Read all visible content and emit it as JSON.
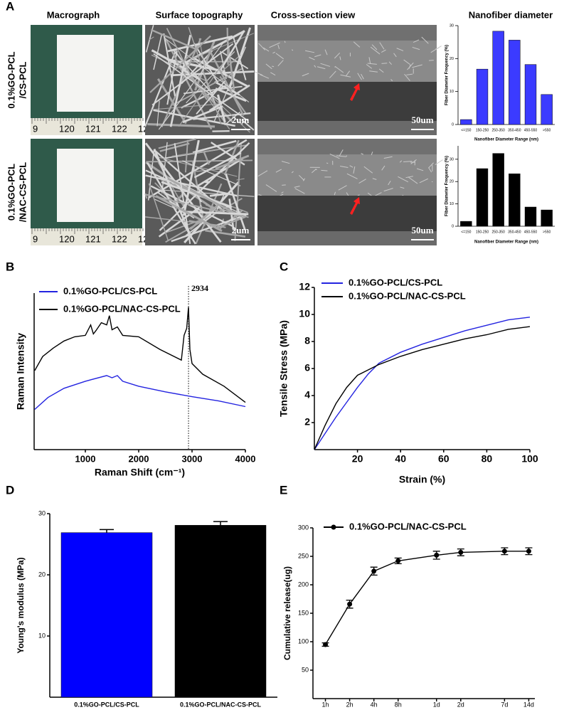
{
  "figure": {
    "panels": [
      "A",
      "B",
      "C",
      "D",
      "E"
    ],
    "columns": [
      "Macrograph",
      "Surface topography",
      "Cross-section view",
      "Nanofiber diameter"
    ],
    "rows": [
      [
        "0.1%GO-PCL",
        "/CS-PCL"
      ],
      [
        "0.1%GO-PCL",
        "/NAC-CS-PCL"
      ]
    ],
    "ruler_labels": [
      "9",
      "120",
      "121",
      "122",
      "12"
    ],
    "scale_bars": [
      "2um",
      "50um"
    ]
  },
  "chart_data": [
    {
      "type": "bar",
      "categories": [
        "<=150",
        "150-250",
        "250-350",
        "350-450",
        "450-550",
        ">550"
      ],
      "values": [
        1.5,
        16.8,
        28.3,
        25.6,
        18.2,
        9.1
      ],
      "color": "#3b3bff",
      "ylim": [
        0,
        30
      ],
      "yticks": [
        0,
        10,
        20,
        30
      ],
      "xlabel": "Nanofiber Diameter Range (nm)",
      "ylabel": "Fiber Diameter Frequency (%)"
    },
    {
      "type": "bar",
      "categories": [
        "<=150",
        "150-250",
        "250-350",
        "350-450",
        "450-550",
        ">550"
      ],
      "values": [
        2.2,
        25.8,
        32.6,
        23.5,
        8.6,
        7.3
      ],
      "color": "#000000",
      "ylim": [
        0,
        36
      ],
      "yticks": [
        0,
        10,
        20,
        30
      ],
      "xlabel": "Nanofiber Diameter Range (nm)",
      "ylabel": "Fiber Diameter Frequency (%)"
    },
    {
      "type": "line",
      "xlabel": "Raman Shift (cm⁻¹)",
      "ylabel": "Raman Intensity",
      "xlim": [
        40,
        4000
      ],
      "xticks": [
        1000,
        2000,
        3000,
        4000
      ],
      "ylim": [
        0,
        100
      ],
      "annotation_x": 2934,
      "series": [
        {
          "name": "0.1%GO-PCL/CS-PCL",
          "color": "#2323e0",
          "x": [
            50,
            300,
            600,
            1000,
            1400,
            1500,
            1600,
            1700,
            2000,
            2500,
            3000,
            3500,
            4000
          ],
          "values": [
            25.7,
            33.3,
            39.2,
            43.7,
            47.3,
            45.9,
            47.3,
            43.7,
            40.5,
            36.9,
            33.8,
            31.1,
            27.5
          ]
        },
        {
          "name": "0.1%GO-PCL/NAC-CS-PCL",
          "color": "#000000",
          "x": [
            50,
            200,
            400,
            600,
            800,
            1000,
            1100,
            1150,
            1200,
            1300,
            1400,
            1450,
            1500,
            1600,
            1700,
            2000,
            2400,
            2800,
            2850,
            2900,
            2934,
            2960,
            3000,
            3200,
            3600,
            4000
          ],
          "values": [
            50.5,
            59.5,
            64.9,
            69.4,
            72.1,
            73,
            79.7,
            73.9,
            76.1,
            81.1,
            79.7,
            85.6,
            76.6,
            78.4,
            73,
            72.1,
            64,
            57.2,
            73,
            77.5,
            91,
            64,
            55,
            48.2,
            40.5,
            30.2
          ]
        }
      ]
    },
    {
      "type": "line",
      "xlabel": "Strain (%)",
      "ylabel": "Tensile Stress (MPa)",
      "xlim": [
        0,
        100
      ],
      "xticks": [
        20,
        40,
        60,
        80,
        100
      ],
      "ylim": [
        0,
        12
      ],
      "yticks": [
        2,
        4,
        6,
        8,
        10,
        12
      ],
      "series": [
        {
          "name": "0.1%GO-PCL/CS-PCL",
          "color": "#2323e0",
          "x": [
            0,
            5,
            10,
            15,
            20,
            25,
            30,
            40,
            50,
            60,
            70,
            80,
            90,
            100
          ],
          "values": [
            0,
            1.2,
            2.4,
            3.5,
            4.6,
            5.6,
            6.4,
            7.2,
            7.8,
            8.3,
            8.8,
            9.2,
            9.6,
            9.8
          ]
        },
        {
          "name": "0.1%GO-PCL/NAC-CS-PCL",
          "color": "#000000",
          "x": [
            0,
            5,
            10,
            15,
            20,
            25,
            30,
            40,
            50,
            60,
            70,
            80,
            90,
            100
          ],
          "values": [
            0,
            1.8,
            3.4,
            4.6,
            5.5,
            5.9,
            6.3,
            6.9,
            7.4,
            7.8,
            8.2,
            8.5,
            8.9,
            9.1
          ]
        }
      ]
    },
    {
      "type": "bar",
      "categories": [
        "0.1%GO-PCL/CS-PCL",
        "0.1%GO-PCL/NAC-CS-PCL"
      ],
      "values": [
        26.9,
        28.1
      ],
      "errors": [
        0.5,
        0.6
      ],
      "colors": [
        "#0000ff",
        "#000000"
      ],
      "ylim": [
        0,
        30
      ],
      "yticks": [
        10,
        20,
        30
      ],
      "ylabel": "Young's modulus (MPa)"
    },
    {
      "type": "line",
      "xscale": "log",
      "ylabel": "Cumulative release(ug)",
      "xlim": [
        0.7,
        400
      ],
      "xticks": [
        {
          "value": 1,
          "label": "1h"
        },
        {
          "value": 2,
          "label": "2h"
        },
        {
          "value": 4,
          "label": "4h"
        },
        {
          "value": 8,
          "label": "8h"
        },
        {
          "value": 24,
          "label": "1d"
        },
        {
          "value": 48,
          "label": "2d"
        },
        {
          "value": 168,
          "label": "7d"
        },
        {
          "value": 336,
          "label": "14d"
        }
      ],
      "ylim": [
        0,
        300
      ],
      "yticks": [
        50,
        100,
        150,
        200,
        250,
        300
      ],
      "series": [
        {
          "name": "0.1%GO-PCL/NAC-CS-PCL",
          "color": "#000000",
          "markers": true,
          "x": [
            1,
            2,
            4,
            8,
            24,
            48,
            168,
            336
          ],
          "values": [
            95,
            166,
            224,
            242,
            252,
            257,
            259,
            259
          ],
          "errors": [
            3,
            7,
            7,
            5,
            7,
            6,
            6,
            6
          ]
        }
      ]
    }
  ]
}
